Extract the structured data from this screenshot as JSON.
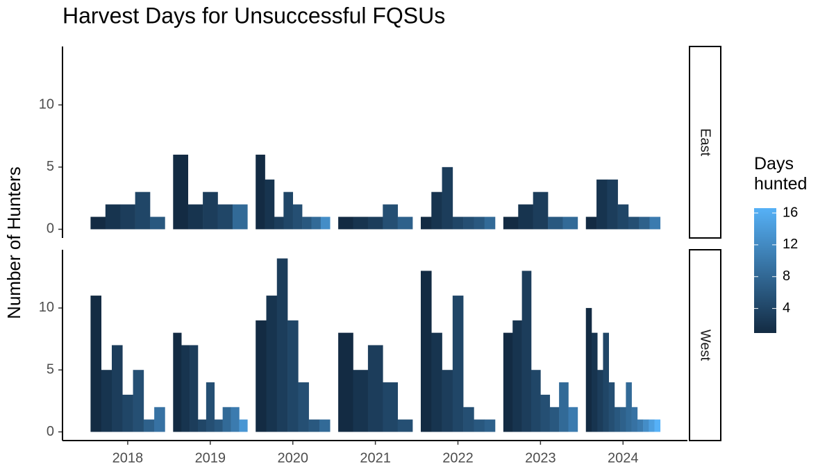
{
  "chart_data": {
    "type": "bar",
    "title": "Harvest Days for Unsuccessful FQSUs",
    "y_label": "Number of Hunters",
    "xlim": [
      2017.21,
      2024.78
    ],
    "xticks": [
      2018,
      2019,
      2020,
      2021,
      2022,
      2023,
      2024
    ],
    "ylim": [
      -0.7,
      14.7
    ],
    "yticks": [
      0,
      5,
      10
    ],
    "facets": [
      {
        "name": "East",
        "groups": [
          {
            "days": [
              1,
              2,
              3,
              4,
              6
            ],
            "counts": [
              1,
              2,
              2,
              3,
              1
            ]
          },
          {
            "days": [
              1,
              2,
              3,
              4,
              8
            ],
            "counts": [
              6,
              2,
              3,
              2,
              2
            ]
          },
          {
            "days": [
              1,
              2,
              3,
              4,
              5,
              6,
              8,
              12
            ],
            "counts": [
              6,
              4,
              1,
              3,
              2,
              1,
              1,
              1
            ]
          },
          {
            "days": [
              1,
              2,
              3,
              5,
              7
            ],
            "counts": [
              1,
              1,
              1,
              2,
              1
            ]
          },
          {
            "days": [
              1,
              2,
              3,
              4,
              5,
              6,
              8
            ],
            "counts": [
              1,
              3,
              5,
              1,
              1,
              1,
              1
            ]
          },
          {
            "days": [
              1,
              2,
              3,
              6,
              8
            ],
            "counts": [
              1,
              2,
              3,
              1,
              1
            ]
          },
          {
            "days": [
              1,
              2,
              3,
              4,
              5,
              7,
              10
            ],
            "counts": [
              1,
              4,
              4,
              2,
              1,
              1,
              1
            ]
          }
        ]
      },
      {
        "name": "West",
        "groups": [
          {
            "days": [
              1,
              2,
              3,
              4,
              5,
              7,
              9
            ],
            "counts": [
              11,
              5,
              7,
              3,
              5,
              1,
              2
            ]
          },
          {
            "days": [
              1,
              2,
              3,
              4,
              5,
              6,
              8,
              10,
              13
            ],
            "counts": [
              8,
              7,
              7,
              1,
              4,
              1,
              2,
              2,
              1
            ]
          },
          {
            "days": [
              1,
              2,
              3,
              4,
              5,
              6,
              8
            ],
            "counts": [
              9,
              11,
              14,
              9,
              4,
              1,
              1
            ]
          },
          {
            "days": [
              1,
              2,
              3,
              4,
              5
            ],
            "counts": [
              8,
              5,
              7,
              4,
              1
            ]
          },
          {
            "days": [
              1,
              2,
              3,
              4,
              5,
              6,
              7
            ],
            "counts": [
              13,
              8,
              5,
              11,
              2,
              1,
              1
            ]
          },
          {
            "days": [
              1,
              2,
              3,
              4,
              5,
              6,
              8,
              10
            ],
            "counts": [
              8,
              9,
              13,
              5,
              3,
              2,
              4,
              2
            ]
          },
          {
            "days": [
              1,
              2,
              3,
              4,
              5,
              6,
              7,
              8,
              9,
              10,
              12,
              14,
              16
            ],
            "counts": [
              10,
              8,
              5,
              8,
              4,
              2,
              2,
              4,
              2,
              1,
              1,
              1,
              1
            ]
          }
        ]
      }
    ],
    "colorbar": {
      "title": "Days hunted",
      "lim": [
        1,
        16
      ],
      "ticks": [
        4,
        8,
        12,
        16
      ],
      "low": "#132B43",
      "high": "#56B1F7"
    }
  }
}
